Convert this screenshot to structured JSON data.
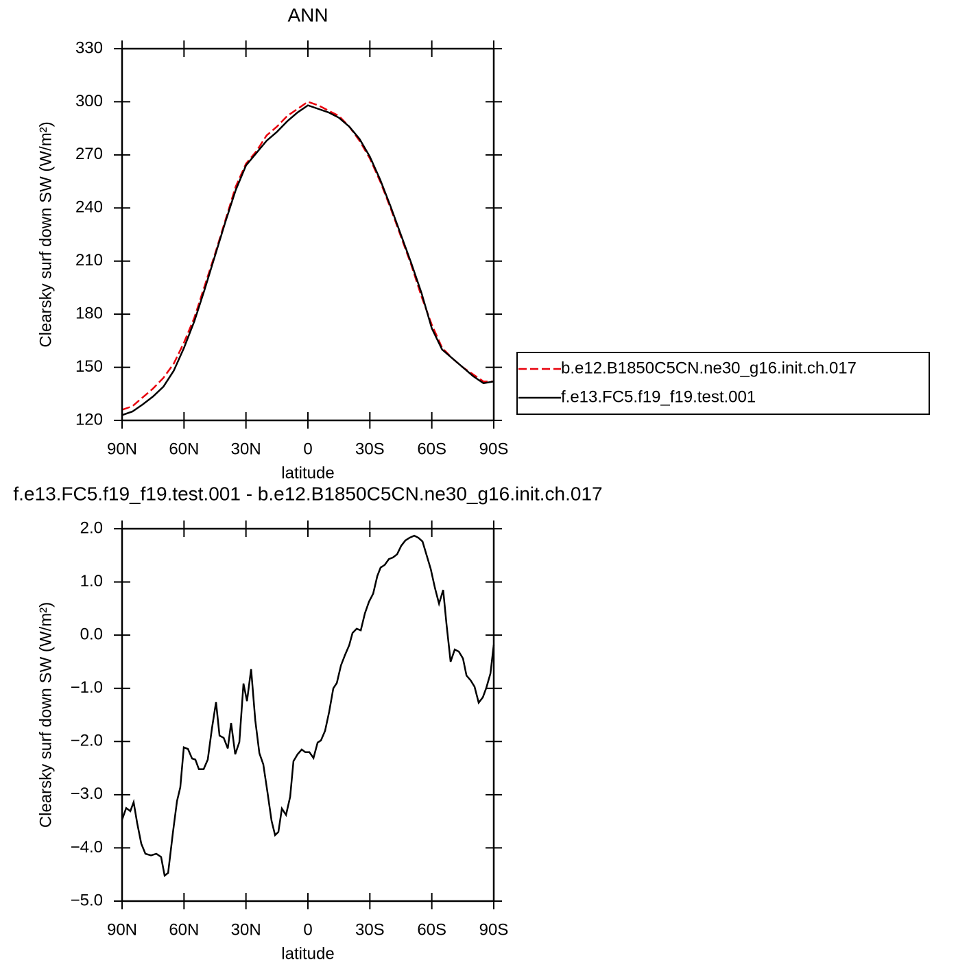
{
  "chart_data": [
    {
      "type": "line",
      "title": "ANN",
      "xlabel": "latitude",
      "ylabel": "Clearsky surf down SW (W/m²)",
      "x": [
        90,
        85,
        80,
        75,
        70,
        65,
        60,
        55,
        50,
        45,
        40,
        35,
        30,
        25,
        20,
        15,
        10,
        5,
        0,
        -5,
        -10,
        -15,
        -20,
        -25,
        -30,
        -35,
        -40,
        -45,
        -50,
        -55,
        -60,
        -65,
        -70,
        -75,
        -80,
        -85,
        -90
      ],
      "series": [
        {
          "name": "b.e12.B1850C5CN.ne30_g16.init.ch.017",
          "color": "#e8000b",
          "linestyle": "dashed",
          "values": [
            126,
            128,
            133,
            138,
            144,
            152,
            164,
            178,
            196,
            214,
            233,
            252,
            265,
            272,
            281,
            286,
            292,
            296,
            300,
            298,
            295,
            292,
            286,
            278,
            268,
            255,
            240,
            224,
            208,
            190,
            174,
            161,
            155,
            150,
            146,
            142,
            142
          ]
        },
        {
          "name": "f.e13.FC5.f19_f19.test.001",
          "color": "#000000",
          "linestyle": "solid",
          "values": [
            123,
            125,
            129,
            133.5,
            139,
            148,
            161,
            176,
            194,
            213,
            232,
            250,
            264,
            271,
            278,
            283,
            289,
            294,
            298,
            296,
            294,
            291,
            286,
            279,
            269,
            256,
            241,
            225,
            209,
            192,
            172,
            160,
            155,
            150,
            145,
            141,
            142
          ]
        }
      ],
      "xlim": [
        90,
        -90
      ],
      "xticks": [
        {
          "value": 90,
          "label": "90N"
        },
        {
          "value": 60,
          "label": "60N"
        },
        {
          "value": 30,
          "label": "30N"
        },
        0,
        {
          "value": -30,
          "label": "30S"
        },
        {
          "value": -60,
          "label": "60S"
        },
        {
          "value": -90,
          "label": "90S"
        }
      ],
      "ylim": [
        120,
        330
      ],
      "yticks": [
        120,
        150,
        180,
        210,
        240,
        270,
        300,
        330
      ],
      "legend": "right"
    },
    {
      "type": "line",
      "title": "f.e13.FC5.f19_f19.test.001 - b.e12.B1850C5CN.ne30_g16.init.ch.017",
      "xlabel": "latitude",
      "ylabel": "Clearsky surf down SW (W/m²)",
      "x": [
        90,
        88.0,
        86.0,
        84.4,
        82.7,
        80.7,
        78.7,
        76.0,
        73.4,
        71.1,
        69.4,
        67.7,
        65.4,
        63.4,
        61.8,
        60.1,
        58.1,
        56.1,
        54.5,
        52.8,
        50.5,
        48.5,
        46.5,
        44.5,
        42.8,
        40.8,
        38.8,
        37.2,
        35.2,
        33.2,
        31.2,
        29.5,
        27.5,
        25.5,
        23.5,
        21.6,
        19.6,
        17.6,
        15.9,
        14.3,
        12.6,
        10.6,
        8.6,
        7.0,
        5.0,
        3.0,
        1.3,
        -0.7,
        -2.7,
        -4.7,
        -6.3,
        -8.3,
        -10.3,
        -12.3,
        -14.0,
        -16.0,
        -18.0,
        -20.0,
        -21.6,
        -23.6,
        -25.6,
        -27.6,
        -29.6,
        -31.6,
        -33.6,
        -35.2,
        -37.2,
        -39.2,
        -41.2,
        -43.2,
        -45.2,
        -47.2,
        -49.2,
        -51.5,
        -53.5,
        -55.5,
        -57.5,
        -59.5,
        -61.5,
        -63.5,
        -65.5,
        -67.1,
        -69.1,
        -71.1,
        -73.1,
        -75.1,
        -76.8,
        -78.8,
        -80.7,
        -82.7,
        -84.7,
        -86.4,
        -88.4,
        -90
      ],
      "series": [
        {
          "color": "#000000",
          "linestyle": "solid",
          "values": [
            -3.47,
            -3.25,
            -3.31,
            -3.14,
            -3.53,
            -3.92,
            -4.11,
            -4.14,
            -4.11,
            -4.17,
            -4.52,
            -4.47,
            -3.72,
            -3.12,
            -2.86,
            -2.11,
            -2.14,
            -2.32,
            -2.34,
            -2.52,
            -2.52,
            -2.34,
            -1.76,
            -1.26,
            -1.89,
            -1.93,
            -2.13,
            -1.65,
            -2.24,
            -2.01,
            -0.91,
            -1.24,
            -0.64,
            -1.6,
            -2.22,
            -2.43,
            -2.95,
            -3.49,
            -3.76,
            -3.7,
            -3.26,
            -3.38,
            -3.04,
            -2.37,
            -2.24,
            -2.15,
            -2.2,
            -2.2,
            -2.31,
            -2.02,
            -1.98,
            -1.8,
            -1.44,
            -1.0,
            -0.9,
            -0.57,
            -0.37,
            -0.19,
            0.04,
            0.12,
            0.09,
            0.41,
            0.63,
            0.78,
            1.11,
            1.27,
            1.32,
            1.43,
            1.46,
            1.52,
            1.68,
            1.78,
            1.83,
            1.87,
            1.83,
            1.76,
            1.5,
            1.24,
            0.89,
            0.59,
            0.85,
            0.21,
            -0.5,
            -0.27,
            -0.31,
            -0.44,
            -0.76,
            -0.85,
            -0.97,
            -1.27,
            -1.17,
            -0.99,
            -0.72,
            -0.18
          ]
        }
      ],
      "xlim": [
        90,
        -90
      ],
      "xticks": [
        {
          "value": 90,
          "label": "90N"
        },
        {
          "value": 60,
          "label": "60N"
        },
        {
          "value": 30,
          "label": "30N"
        },
        0,
        {
          "value": -30,
          "label": "30S"
        },
        {
          "value": -60,
          "label": "60S"
        },
        {
          "value": -90,
          "label": "90S"
        }
      ],
      "ylim": [
        -5,
        2
      ],
      "yticks": [
        {
          "value": -5,
          "label": "−5.0"
        },
        {
          "value": -4,
          "label": "−4.0"
        },
        {
          "value": -3,
          "label": "−3.0"
        },
        {
          "value": -2,
          "label": "−2.0"
        },
        {
          "value": -1,
          "label": "−1.0"
        },
        {
          "value": 0,
          "label": "0.0"
        },
        {
          "value": 1,
          "label": "1.0"
        },
        {
          "value": 2,
          "label": "2.0"
        }
      ]
    }
  ]
}
